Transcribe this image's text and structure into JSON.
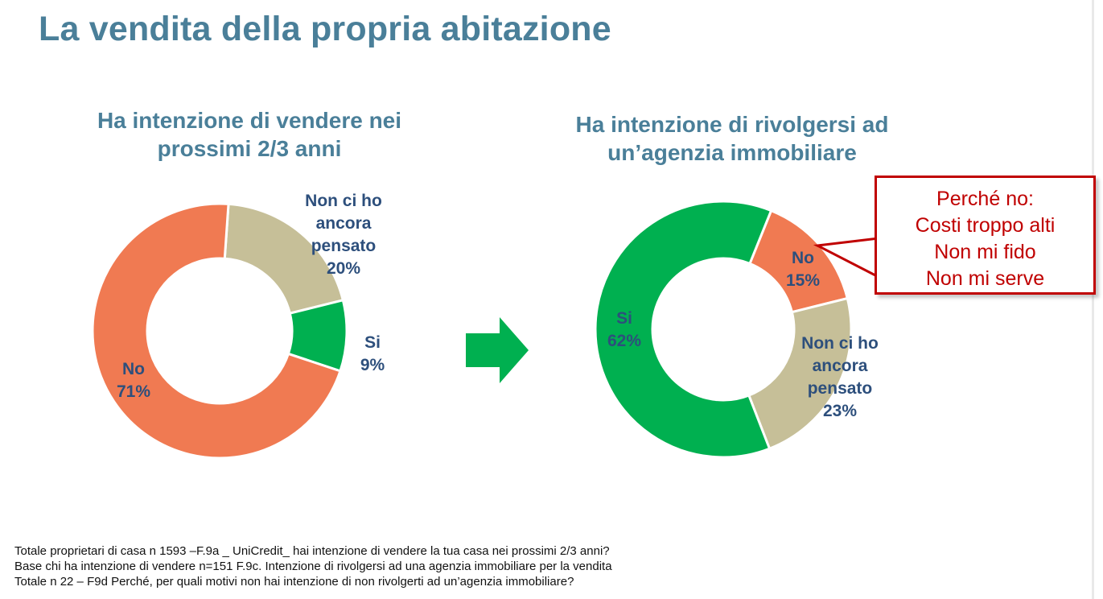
{
  "slide": {
    "title": "La vendita della propria abitazione",
    "callout_lines": [
      "Perché no:",
      "Costi troppo alti",
      "Non mi fido",
      "Non mi serve"
    ],
    "footnotes": [
      "Totale proprietari di casa n 1593 –F.9a _ UniCredit_ hai intenzione di vendere la tua casa nei prossimi 2/3 anni?",
      "Base chi ha intenzione di vendere n=151 F.9c. Intenzione di rivolgersi ad una agenzia immobiliare per la vendita",
      "Totale n 22 – F9d Perché, per quali motivi non hai intenzione di non rivolgerti ad un’agenzia immobiliare?"
    ]
  },
  "chart_data": [
    {
      "type": "pie",
      "variant": "donut",
      "title_lines": [
        "Ha intenzione di vendere nei",
        "prossimi 2/3 anni"
      ],
      "segments": [
        {
          "name_lines": [
            "Non ci ho",
            "ancora",
            "pensato"
          ],
          "value_label": "20%",
          "value": 20,
          "color": "#c6bf98"
        },
        {
          "name_lines": [
            "Si"
          ],
          "value_label": "9%",
          "value": 9,
          "color": "#00b050"
        },
        {
          "name_lines": [
            "No"
          ],
          "value_label": "71%",
          "value": 71,
          "color": "#f07a52"
        }
      ]
    },
    {
      "type": "pie",
      "variant": "donut",
      "title_lines": [
        "Ha intenzione di rivolgersi ad",
        "un’agenzia immobiliare"
      ],
      "segments": [
        {
          "name_lines": [
            "No"
          ],
          "value_label": "15%",
          "value": 15,
          "color": "#f07a52"
        },
        {
          "name_lines": [
            "Non ci ho",
            "ancora",
            "pensato"
          ],
          "value_label": "23%",
          "value": 23,
          "color": "#c6bf98"
        },
        {
          "name_lines": [
            "Si"
          ],
          "value_label": "62%",
          "value": 62,
          "color": "#00b050"
        }
      ]
    }
  ]
}
